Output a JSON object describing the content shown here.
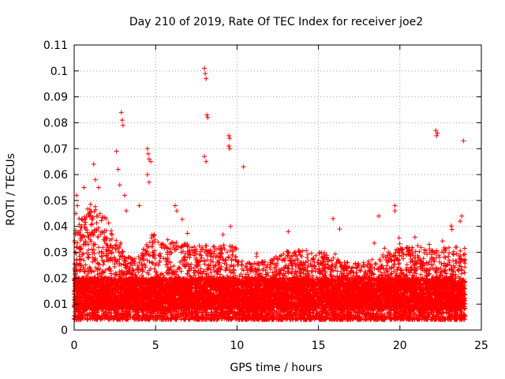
{
  "chart_data": {
    "type": "scatter",
    "title": "Day 210 of 2019, Rate Of TEC Index for receiver joe2",
    "xlabel": "GPS time / hours",
    "ylabel": "ROTI / TECUs",
    "xlim": [
      0,
      25
    ],
    "ylim": [
      0,
      0.11
    ],
    "x_ticks": [
      "0",
      "5",
      "10",
      "15",
      "20",
      "25"
    ],
    "y_ticks": [
      "0",
      "0.01",
      "0.02",
      "0.03",
      "0.04",
      "0.05",
      "0.06",
      "0.07",
      "0.08",
      "0.09",
      "0.1",
      "0.11"
    ],
    "grid": true,
    "marker": "plus",
    "series": [
      {
        "color": "#ff0000",
        "points": [
          [
            0.1,
            0.045
          ],
          [
            0.15,
            0.052
          ],
          [
            0.2,
            0.048
          ],
          [
            0.3,
            0.043
          ],
          [
            0.6,
            0.055
          ],
          [
            1.2,
            0.064
          ],
          [
            1.3,
            0.058
          ],
          [
            1.5,
            0.055
          ],
          [
            2.6,
            0.069
          ],
          [
            2.7,
            0.062
          ],
          [
            2.8,
            0.056
          ],
          [
            2.9,
            0.084
          ],
          [
            2.95,
            0.081
          ],
          [
            3.0,
            0.079
          ],
          [
            3.1,
            0.052
          ],
          [
            3.2,
            0.046
          ],
          [
            4.0,
            0.048
          ],
          [
            4.5,
            0.07
          ],
          [
            4.55,
            0.068
          ],
          [
            4.6,
            0.066
          ],
          [
            4.7,
            0.065
          ],
          [
            4.5,
            0.06
          ],
          [
            4.6,
            0.057
          ],
          [
            6.2,
            0.048
          ],
          [
            6.3,
            0.046
          ],
          [
            8.0,
            0.101
          ],
          [
            8.05,
            0.099
          ],
          [
            8.1,
            0.097
          ],
          [
            8.15,
            0.083
          ],
          [
            8.2,
            0.082
          ],
          [
            8.0,
            0.067
          ],
          [
            8.1,
            0.065
          ],
          [
            9.5,
            0.075
          ],
          [
            9.55,
            0.074
          ],
          [
            9.5,
            0.071
          ],
          [
            9.55,
            0.07
          ],
          [
            10.4,
            0.063
          ],
          [
            9.6,
            0.04
          ],
          [
            15.9,
            0.043
          ],
          [
            16.3,
            0.039
          ],
          [
            18.7,
            0.044
          ],
          [
            19.7,
            0.048
          ],
          [
            19.7,
            0.046
          ],
          [
            22.2,
            0.077
          ],
          [
            22.3,
            0.076
          ],
          [
            22.25,
            0.075
          ],
          [
            23.9,
            0.073
          ],
          [
            23.8,
            0.044
          ],
          [
            23.7,
            0.042
          ]
        ]
      }
    ]
  }
}
